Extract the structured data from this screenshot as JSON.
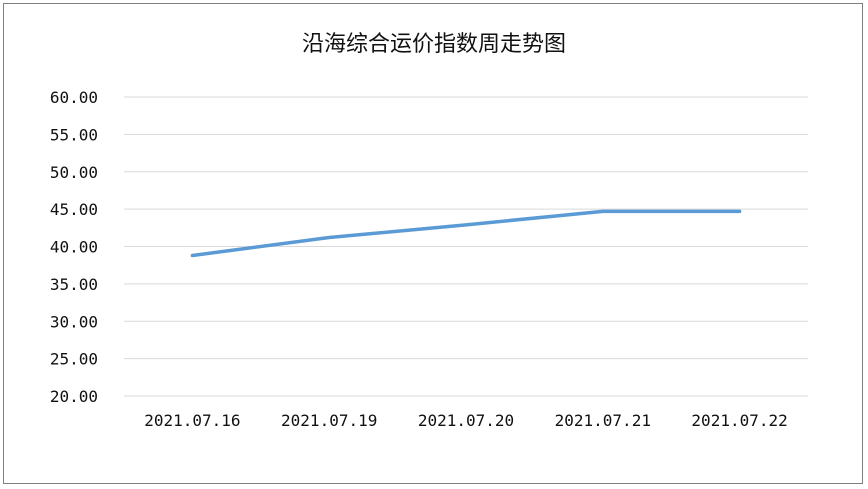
{
  "chart_data": {
    "type": "line",
    "title": "沿海综合运价指数周走势图",
    "xlabel": "",
    "ylabel": "",
    "categories": [
      "2021.07.16",
      "2021.07.19",
      "2021.07.20",
      "2021.07.21",
      "2021.07.22"
    ],
    "series": [
      {
        "values": [
          38.8,
          41.2,
          42.9,
          44.7,
          44.7
        ]
      }
    ],
    "ylim": [
      20,
      60
    ],
    "yticks": [
      "20.00",
      "25.00",
      "30.00",
      "35.00",
      "40.00",
      "45.00",
      "50.00",
      "55.00",
      "60.00"
    ],
    "grid": true,
    "legend": "none",
    "line_color": "#5b9bd5",
    "grid_color": "#d9d9d9"
  }
}
